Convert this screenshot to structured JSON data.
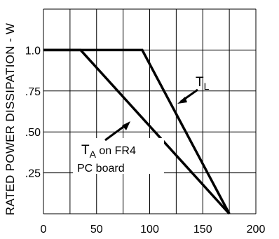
{
  "chart_data": {
    "type": "line",
    "ylabel": "RATED POWER DISSIPATION - W",
    "xlabel": "",
    "xlim": [
      0,
      200
    ],
    "ylim": [
      0,
      1.25
    ],
    "grid": true,
    "x_ticks": [
      "0",
      "50",
      "100",
      "150",
      "200"
    ],
    "y_ticks": [
      ".25",
      ".50",
      ".75",
      "1.0"
    ],
    "series": [
      {
        "name": "TL",
        "x": [
          0,
          93,
          175
        ],
        "y": [
          1.0,
          1.0,
          0
        ]
      },
      {
        "name": "TA on FR4 PC board",
        "x": [
          0,
          35,
          175
        ],
        "y": [
          1.0,
          1.0,
          0
        ]
      }
    ],
    "annotations": {
      "tl": {
        "main": "T",
        "sub": "L"
      },
      "ta": {
        "main": "T",
        "sub": "A",
        "rest": " on FR4",
        "line2": "PC board"
      }
    }
  }
}
